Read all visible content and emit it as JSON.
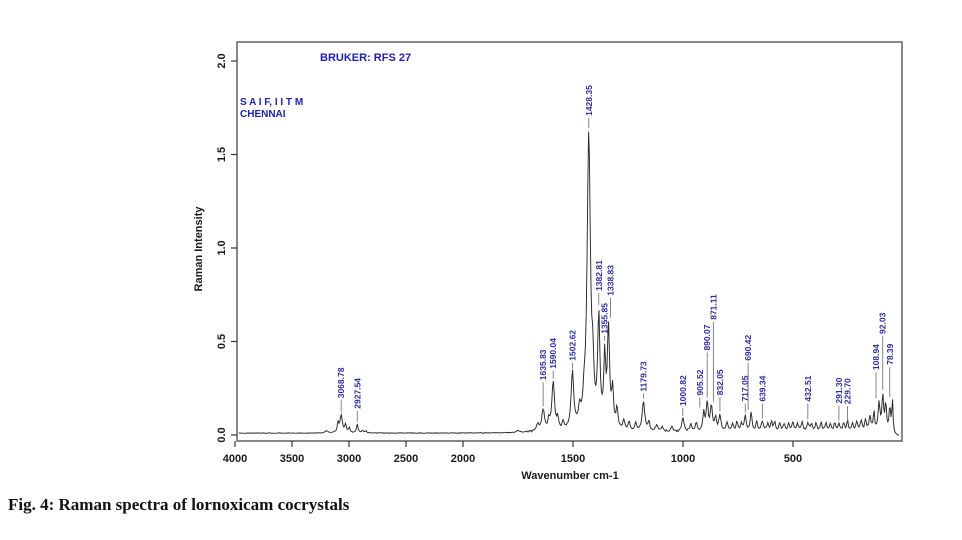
{
  "figure": {
    "caption": "Fig. 4: Raman spectra of lornoxicam cocrystals"
  },
  "annotations": {
    "instrument": "BRUKER: RFS 27",
    "facility_line1": "S A I F, I I T M",
    "facility_line2": "CHENNAI"
  },
  "colors": {
    "annotation_blue": "#2121aa",
    "peak_label_blue": "#2e2e9e",
    "curve": "#282828",
    "box": "#6b6b6b",
    "tick": "#333333",
    "tick_label": "#1a1a1a",
    "pointer_line": "#666666"
  },
  "chart_data": {
    "type": "line",
    "title": "",
    "xlabel": "Wavenumber cm-1",
    "ylabel": "Raman Intensity",
    "x_ticks": [
      "4000",
      "3500",
      "3000",
      "2500",
      "2000",
      "1500",
      "1000",
      "500"
    ],
    "x_tick_values": [
      4000,
      3500,
      3000,
      2500,
      2000,
      1500,
      1000,
      500
    ],
    "y_ticks": [
      "0.0",
      "0.5",
      "1.0",
      "1.5",
      "2.0"
    ],
    "y_tick_values": [
      0.0,
      0.5,
      1.0,
      1.5,
      2.0
    ],
    "ylim": [
      0,
      2.05
    ],
    "xlim": [
      3982,
      5
    ],
    "grid": false,
    "x_scale_note": "wavenumber axis compressed to half scale above 2000 cm-1",
    "labeled_peaks": [
      {
        "label": "3068.78",
        "w": 3068.78,
        "i": 0.095,
        "g": 12,
        "lift": 12,
        "dx": 0
      },
      {
        "label": "2927.54",
        "w": 2927.54,
        "i": 0.048,
        "g": 8,
        "lift": 11,
        "dx": 0
      },
      {
        "label": "1635.83",
        "w": 1635.83,
        "i": 0.115,
        "g": 7,
        "lift": 24,
        "dx": 0
      },
      {
        "label": "1590.04",
        "w": 1590.04,
        "i": 0.26,
        "g": 7,
        "lift": 8,
        "dx": 0
      },
      {
        "label": "1502.62",
        "w": 1502.62,
        "i": 0.3,
        "g": 7,
        "lift": 6,
        "dx": 0
      },
      {
        "label": "1428.35",
        "w": 1428.35,
        "i": 1.58,
        "g": 9,
        "lift": 10,
        "dx": 0
      },
      {
        "label": "1382.81",
        "w": 1382.81,
        "i": 0.58,
        "g": 6,
        "lift": 12,
        "dx": 0
      },
      {
        "label": "1355.85",
        "w": 1355.85,
        "i": 0.36,
        "g": 5,
        "lift": 5,
        "dx": 0
      },
      {
        "label": "1338.83",
        "w": 1338.83,
        "i": 0.53,
        "g": 6,
        "lift": 20,
        "dx": 2
      },
      {
        "label": "1179.73",
        "w": 1179.73,
        "i": 0.16,
        "g": 7,
        "lift": 5,
        "dx": 0
      },
      {
        "label": "1000.82",
        "w": 1000.82,
        "i": 0.075,
        "g": 6,
        "lift": 8,
        "dx": 0
      },
      {
        "label": "905.52",
        "w": 905.52,
        "i": 0.1,
        "g": 5,
        "lift": 10,
        "dx": -4
      },
      {
        "label": "890.07",
        "w": 890.07,
        "i": 0.15,
        "g": 5,
        "lift": 45,
        "dx": 0
      },
      {
        "label": "871.11",
        "w": 871.11,
        "i": 0.135,
        "g": 6,
        "lift": 80,
        "dx": 2
      },
      {
        "label": "832.05",
        "w": 832.05,
        "i": 0.085,
        "g": 6,
        "lift": 14,
        "dx": 0
      },
      {
        "label": "717.05",
        "w": 717.05,
        "i": 0.085,
        "g": 5,
        "lift": 9,
        "dx": 0
      },
      {
        "label": "690.42",
        "w": 690.42,
        "i": 0.1,
        "g": 5,
        "lift": 47,
        "dx": -3
      },
      {
        "label": "639.34",
        "w": 639.34,
        "i": 0.055,
        "g": 6,
        "lift": 15,
        "dx": 0
      },
      {
        "label": "432.51",
        "w": 432.51,
        "i": 0.048,
        "g": 6,
        "lift": 16,
        "dx": 0
      },
      {
        "label": "291.30",
        "w": 291.3,
        "i": 0.042,
        "g": 5,
        "lift": 15,
        "dx": 0
      },
      {
        "label": "229.70",
        "w": 229.7,
        "i": 0.042,
        "g": 5,
        "lift": 15,
        "dx": -5
      },
      {
        "label": "108.94",
        "w": 108.94,
        "i": 0.155,
        "g": 5,
        "lift": 26,
        "dx": -3
      },
      {
        "label": "92.03",
        "w": 92.03,
        "i": 0.19,
        "g": 4.5,
        "lift": 54,
        "dx": 0
      },
      {
        "label": "78.39",
        "w": 78.39,
        "i": 0.15,
        "g": 4,
        "lift": 30,
        "dx": 4
      }
    ],
    "minor_features": [
      [
        3200,
        0.012,
        15
      ],
      [
        3096,
        0.05,
        8
      ],
      [
        3030,
        0.045,
        8
      ],
      [
        2998,
        0.028,
        7
      ],
      [
        2880,
        0.015,
        7
      ],
      [
        2850,
        0.012,
        7
      ],
      [
        1750,
        0.012,
        8
      ],
      [
        1660,
        0.04,
        6
      ],
      [
        1610,
        0.05,
        5
      ],
      [
        1570,
        0.06,
        5
      ],
      [
        1545,
        0.04,
        5
      ],
      [
        1470,
        0.08,
        6
      ],
      [
        1450,
        0.09,
        5
      ],
      [
        1410,
        0.22,
        5
      ],
      [
        1320,
        0.2,
        5
      ],
      [
        1300,
        0.11,
        5
      ],
      [
        1270,
        0.055,
        5
      ],
      [
        1245,
        0.05,
        5
      ],
      [
        1215,
        0.04,
        5
      ],
      [
        1155,
        0.05,
        5
      ],
      [
        1120,
        0.035,
        6
      ],
      [
        1095,
        0.03,
        5
      ],
      [
        1050,
        0.03,
        5
      ],
      [
        965,
        0.04,
        5
      ],
      [
        940,
        0.05,
        5
      ],
      [
        852,
        0.07,
        5
      ],
      [
        800,
        0.045,
        6
      ],
      [
        775,
        0.04,
        5
      ],
      [
        755,
        0.05,
        5
      ],
      [
        735,
        0.045,
        5
      ],
      [
        665,
        0.05,
        5
      ],
      [
        615,
        0.04,
        5
      ],
      [
        598,
        0.05,
        5
      ],
      [
        583,
        0.045,
        5
      ],
      [
        560,
        0.045,
        5
      ],
      [
        540,
        0.04,
        5
      ],
      [
        520,
        0.04,
        5
      ],
      [
        500,
        0.05,
        5
      ],
      [
        480,
        0.045,
        5
      ],
      [
        458,
        0.05,
        5
      ],
      [
        415,
        0.04,
        5
      ],
      [
        395,
        0.045,
        5
      ],
      [
        372,
        0.05,
        5
      ],
      [
        350,
        0.045,
        5
      ],
      [
        330,
        0.04,
        5
      ],
      [
        310,
        0.045,
        5
      ],
      [
        270,
        0.045,
        5
      ],
      [
        252,
        0.05,
        5
      ],
      [
        210,
        0.05,
        5
      ],
      [
        190,
        0.055,
        5
      ],
      [
        170,
        0.06,
        5
      ],
      [
        150,
        0.08,
        5
      ],
      [
        132,
        0.1,
        4
      ],
      [
        60,
        0.13,
        4
      ],
      [
        48,
        0.17,
        3
      ]
    ]
  }
}
